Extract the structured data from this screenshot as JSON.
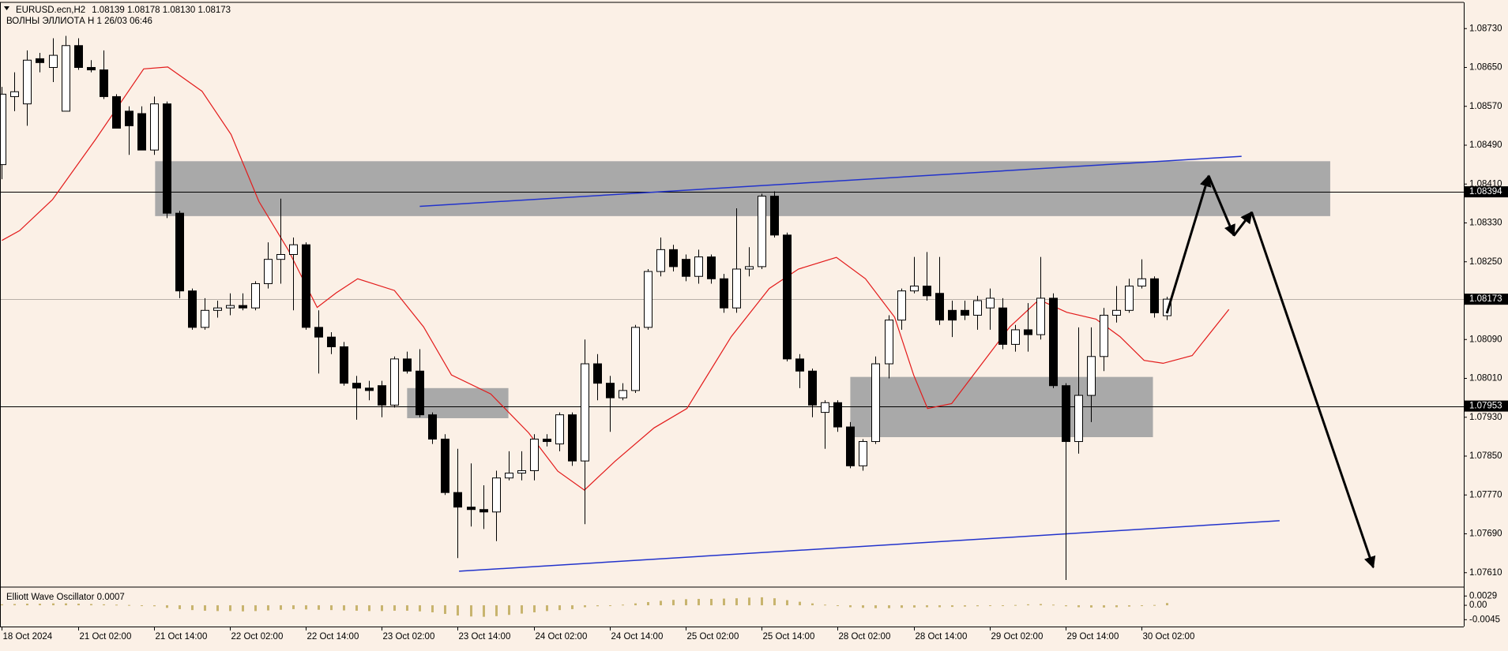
{
  "chart_data": {
    "type": "candlestick",
    "title": "EURUSD.ecn,H2",
    "ohlc_label": "1.08139 1.08178 1.08130 1.08173",
    "subtitle": "ВОЛНЫ ЭЛЛИОТА H 1 26/03 06:46",
    "categories": [
      "18 Oct 2024",
      null,
      null,
      null,
      null,
      null,
      "21 Oct 02:00",
      null,
      null,
      null,
      null,
      null,
      "21 Oct 14:00",
      null,
      null,
      null,
      null,
      null,
      "22 Oct 02:00",
      null,
      null,
      null,
      null,
      null,
      "22 Oct 14:00",
      null,
      null,
      null,
      null,
      null,
      "23 Oct 02:00",
      null,
      null,
      null,
      null,
      null,
      "23 Oct 14:00",
      null,
      null,
      null,
      null,
      null,
      "24 Oct 02:00",
      null,
      null,
      null,
      null,
      null,
      "24 Oct 14:00",
      null,
      null,
      null,
      null,
      null,
      "25 Oct 02:00",
      null,
      null,
      null,
      null,
      null,
      "25 Oct 14:00",
      null,
      null,
      null,
      null,
      null,
      "28 Oct 02:00",
      null,
      null,
      null,
      null,
      null,
      "28 Oct 14:00",
      null,
      null,
      null,
      null,
      null,
      "29 Oct 02:00",
      null,
      null,
      null,
      null,
      null,
      "29 Oct 14:00",
      null,
      null,
      null,
      null,
      null,
      "30 Oct 02:00",
      null,
      null
    ],
    "open": [
      1.0845,
      1.0859,
      1.08575,
      1.08668,
      1.0865,
      1.0856,
      1.08695,
      1.0865,
      1.08645,
      1.0859,
      1.0856,
      1.08555,
      1.0848,
      1.08575,
      1.0835,
      1.0819,
      1.08115,
      1.0815,
      1.08155,
      1.0816,
      1.08155,
      1.08205,
      1.08255,
      1.08265,
      1.08285,
      1.08115,
      1.08095,
      1.08075,
      1.08,
      1.0799,
      1.07995,
      1.07955,
      1.0805,
      1.08025,
      1.07935,
      1.07885,
      1.07775,
      1.07745,
      1.0774,
      1.07735,
      1.07805,
      1.07815,
      1.0782,
      1.07885,
      1.07875,
      1.07935,
      1.0784,
      1.0804,
      1.08,
      1.0797,
      1.07985,
      1.08115,
      1.0823,
      1.08275,
      1.08255,
      1.0822,
      1.0826,
      1.08215,
      1.08155,
      1.08235,
      1.0824,
      1.08385,
      1.08305,
      1.0805,
      1.08025,
      1.0794,
      1.0796,
      1.0791,
      1.0783,
      1.0788,
      1.0804,
      1.0813,
      1.0819,
      1.082,
      1.08185,
      1.0815,
      1.0815,
      1.0814,
      1.08155,
      1.08155,
      1.0808,
      1.0811,
      1.081,
      1.08175,
      1.07995,
      1.0788,
      1.07975,
      1.08055,
      1.0814,
      1.0815,
      1.082,
      1.08215,
      1.08139
    ],
    "high": [
      1.0861,
      1.0864,
      1.08685,
      1.0868,
      1.0871,
      1.08715,
      1.0871,
      1.08665,
      1.08685,
      1.08595,
      1.0857,
      1.0857,
      1.0859,
      1.0858,
      1.08355,
      1.08195,
      1.08175,
      1.0817,
      1.08185,
      1.08185,
      1.0821,
      1.0829,
      1.0838,
      1.083,
      1.0829,
      1.0815,
      1.08105,
      1.08085,
      1.08015,
      1.08005,
      1.08005,
      1.08055,
      1.08065,
      1.0807,
      1.0794,
      1.07895,
      1.07865,
      1.07835,
      1.0779,
      1.0782,
      1.0786,
      1.0786,
      1.07895,
      1.07895,
      1.0794,
      1.0794,
      1.0809,
      1.0806,
      1.08015,
      1.08,
      1.0812,
      1.08235,
      1.083,
      1.08285,
      1.08265,
      1.08275,
      1.08265,
      1.08225,
      1.0836,
      1.0828,
      1.0839,
      1.08395,
      1.0831,
      1.0806,
      1.0803,
      1.07965,
      1.07965,
      1.0792,
      1.07885,
      1.08055,
      1.0814,
      1.08195,
      1.0826,
      1.0827,
      1.0826,
      1.0817,
      1.0817,
      1.0818,
      1.08195,
      1.08175,
      1.0812,
      1.08165,
      1.0826,
      1.08185,
      1.08,
      1.08115,
      1.08115,
      1.08155,
      1.082,
      1.08215,
      1.08255,
      1.0822,
      1.08178
    ],
    "low": [
      1.0842,
      1.0856,
      1.0853,
      1.0864,
      1.0862,
      1.0856,
      1.08645,
      1.0864,
      1.08585,
      1.08525,
      1.0847,
      1.0848,
      1.0847,
      1.0834,
      1.08175,
      1.0811,
      1.0811,
      1.08135,
      1.0814,
      1.0815,
      1.0815,
      1.08195,
      1.08205,
      1.0815,
      1.0811,
      1.0802,
      1.0806,
      1.07995,
      1.07925,
      1.07965,
      1.0793,
      1.0795,
      1.0802,
      1.0793,
      1.07875,
      1.0777,
      1.0764,
      1.07705,
      1.077,
      1.07675,
      1.078,
      1.078,
      1.078,
      1.0787,
      1.0786,
      1.0783,
      1.0771,
      1.07965,
      1.079,
      1.07965,
      1.0798,
      1.0811,
      1.0822,
      1.0823,
      1.0821,
      1.08205,
      1.08205,
      1.08145,
      1.08145,
      1.0822,
      1.08235,
      1.083,
      1.08045,
      1.0799,
      1.0793,
      1.07865,
      1.079,
      1.07825,
      1.0782,
      1.07875,
      1.0801,
      1.0811,
      1.08185,
      1.0817,
      1.0812,
      1.08095,
      1.0813,
      1.0811,
      1.0811,
      1.0807,
      1.08065,
      1.08065,
      1.0809,
      1.0799,
      1.07595,
      1.07855,
      1.0792,
      1.08025,
      1.08125,
      1.08145,
      1.08195,
      1.08135,
      1.0813
    ],
    "close": [
      1.08595,
      1.086,
      1.08665,
      1.0866,
      1.08675,
      1.08695,
      1.0865,
      1.08645,
      1.0859,
      1.08525,
      1.0853,
      1.0848,
      1.08575,
      1.0835,
      1.0819,
      1.08115,
      1.0815,
      1.08155,
      1.0816,
      1.08155,
      1.08205,
      1.08255,
      1.08265,
      1.08285,
      1.08115,
      1.08095,
      1.08075,
      1.08,
      1.0799,
      1.07985,
      1.07955,
      1.0805,
      1.08025,
      1.07935,
      1.07885,
      1.07775,
      1.07745,
      1.0774,
      1.07735,
      1.07805,
      1.07815,
      1.0782,
      1.07885,
      1.0788,
      1.07935,
      1.0784,
      1.0804,
      1.08,
      1.0797,
      1.07985,
      1.08115,
      1.0823,
      1.08275,
      1.0824,
      1.0822,
      1.0826,
      1.08215,
      1.08155,
      1.08235,
      1.0824,
      1.08385,
      1.08305,
      1.0805,
      1.08025,
      1.07955,
      1.0796,
      1.0791,
      1.0783,
      1.0788,
      1.0804,
      1.0813,
      1.0819,
      1.082,
      1.0818,
      1.0813,
      1.0813,
      1.0814,
      1.0817,
      1.08175,
      1.0808,
      1.0811,
      1.081,
      1.08175,
      1.07995,
      1.0788,
      1.07975,
      1.08055,
      1.0814,
      1.0815,
      1.082,
      1.08215,
      1.08145,
      1.08173
    ],
    "up_color": "#ffffff",
    "down_color": "#000000",
    "ylim": [
      1.07582,
      1.08783
    ],
    "yticks": [
      {
        "value": 1.0873,
        "label": "1.08730"
      },
      {
        "value": 1.0865,
        "label": "1.08650"
      },
      {
        "value": 1.0857,
        "label": "1.08570"
      },
      {
        "value": 1.0849,
        "label": "1.08490"
      },
      {
        "value": 1.0841,
        "label": "1.08410"
      },
      {
        "value": 1.0833,
        "label": "1.08330"
      },
      {
        "value": 1.0825,
        "label": "1.08250"
      },
      {
        "value": 1.0817,
        "label": "1.08170"
      },
      {
        "value": 1.0809,
        "label": "1.08090"
      },
      {
        "value": 1.0801,
        "label": "1.08010"
      },
      {
        "value": 1.0793,
        "label": "1.07930"
      },
      {
        "value": 1.0785,
        "label": "1.07850"
      },
      {
        "value": 1.0777,
        "label": "1.07770"
      },
      {
        "value": 1.0769,
        "label": "1.07690"
      },
      {
        "value": 1.0761,
        "label": "1.07610"
      }
    ],
    "levels": [
      {
        "value": 1.08394,
        "color": "#000000"
      },
      {
        "value": 1.07953,
        "color": "#000000"
      }
    ],
    "last_price": 1.08173,
    "ma": {
      "color": "#e31a1a",
      "x": [
        0,
        1.4,
        4,
        7.4,
        11.2,
        13.1,
        15.8,
        18.1,
        20.3,
        22.6,
        24.9,
        26.4,
        28.1,
        31,
        33.3,
        35.5,
        38.6,
        41.6,
        43.9,
        46,
        48.4,
        51.5,
        54.1,
        57.6,
        60.6,
        62.9,
        65.9,
        68.2,
        70.5,
        72,
        73.1,
        75,
        77.3,
        79.6,
        81.9,
        84.1,
        86.4,
        88.3,
        90.2,
        91.7,
        94,
        96.9
      ],
      "values": [
        1.08294,
        1.08314,
        1.08378,
        1.08502,
        1.08647,
        1.08651,
        1.08601,
        1.08512,
        1.08374,
        1.08275,
        1.08156,
        1.08186,
        1.08215,
        1.08191,
        1.08116,
        1.08017,
        1.07978,
        1.07898,
        1.07819,
        1.0778,
        1.07839,
        1.07908,
        1.07948,
        1.08096,
        1.08195,
        1.08235,
        1.08259,
        1.08215,
        1.08136,
        1.08017,
        1.07948,
        1.07958,
        1.08037,
        1.08116,
        1.08172,
        1.08146,
        1.08132,
        1.08096,
        1.08047,
        1.08041,
        1.08057,
        1.08152
      ]
    },
    "zones": [
      {
        "x0": 12.1,
        "x1": 104.9,
        "top": 1.08457,
        "bottom": 1.08344,
        "color": "#a9a9a9"
      },
      {
        "x0": 32,
        "x1": 40,
        "top": 1.0799,
        "bottom": 1.07928,
        "color": "#a9a9a9"
      },
      {
        "x0": 67,
        "x1": 90.9,
        "top": 1.08013,
        "bottom": 1.07889,
        "color": "#a9a9a9"
      }
    ],
    "trendlines": [
      {
        "x0": 33,
        "y0": 1.08364,
        "x1": 97.9,
        "y1": 1.08467,
        "color": "#2233cc"
      },
      {
        "x0": 36.1,
        "y0": 1.07613,
        "x1": 100.9,
        "y1": 1.07717,
        "color": "#2233cc"
      }
    ],
    "forecast": {
      "color": "#000000",
      "x": [
        92,
        95.3,
        97.3,
        98.7,
        108.3
      ],
      "values": [
        1.08144,
        1.08427,
        1.08304,
        1.08352,
        1.07621
      ]
    },
    "oscillator": {
      "label": "Elliott Wave Oscillator 0.0007",
      "color": "#c8b46e",
      "ylim": [
        -0.0064,
        0.0052
      ],
      "yticks": [
        0.0029,
        {
          "value": 0,
          "label": "0.00"
        },
        -0.0045
      ],
      "values": [
        0.0003,
        0.0004,
        0.0005,
        0.0005,
        0.0006,
        0.0006,
        0.0005,
        0.0004,
        0.0003,
        0.0002,
        0.0001,
        0,
        -0.0003,
        -0.0008,
        -0.0012,
        -0.0015,
        -0.0017,
        -0.0018,
        -0.0018,
        -0.0019,
        -0.0018,
        -0.0016,
        -0.0014,
        -0.0012,
        -0.0013,
        -0.0014,
        -0.0015,
        -0.0016,
        -0.0017,
        -0.0018,
        -0.0018,
        -0.0017,
        -0.0017,
        -0.0019,
        -0.0022,
        -0.0027,
        -0.0032,
        -0.0035,
        -0.0036,
        -0.0034,
        -0.003,
        -0.0026,
        -0.0022,
        -0.0018,
        -0.0015,
        -0.0012,
        -0.0006,
        -0.0003,
        -0.0001,
        0.0002,
        0.0006,
        0.001,
        0.0014,
        0.0017,
        0.0019,
        0.002,
        0.002,
        0.0021,
        0.0022,
        0.0024,
        0.0025,
        0.0022,
        0.0016,
        0.0011,
        0.0006,
        0.0002,
        -0.0002,
        -0.0006,
        -0.0008,
        -0.0009,
        -0.0009,
        -0.0008,
        -0.0007,
        -0.0006,
        -0.0006,
        -0.0005,
        -0.0004,
        -0.0003,
        -0.0002,
        -0.0001,
        0.0001,
        0.0003,
        0.0004,
        0.0002,
        -0.0003,
        -0.0006,
        -0.0007,
        -0.0007,
        -0.0006,
        -0.0004,
        -0.0002,
        0.0001,
        0.0007
      ]
    }
  }
}
